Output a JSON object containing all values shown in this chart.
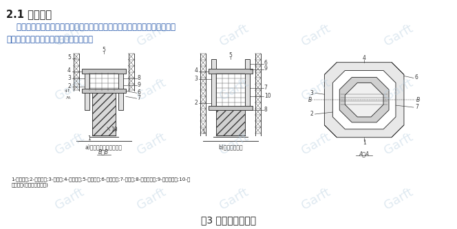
{
  "bg_color": "#ffffff",
  "watermark_color": "#b8cfe0",
  "title_heading": "2.1 翻模工艺",
  "body_text_line1": "    模板制造简单，构件种类少，可根据施工起吊能力、索塔造型进行分块，施",
  "body_text_line2": "工缝易于处理，外观美观，施工速度快。",
  "caption_bottom": "图3 翻模提升示意图",
  "sub_caption_a": "a)浇筑混凝土、安装模板",
  "sub_caption_b": "b)翻板交替提升",
  "section_label_bb": "B－B",
  "section_label_aa": "A－A",
  "legend_text": "1-已浇索塔;2-模板构架;3-外模板;4-上作平台;5-劲性骨架;6-内控平台;7-内模板;8-第三节模板;9-第二节模板;10-第",
  "legend_text2": "一节模板(左侧模板未编号)",
  "text_color": "#1a1a1a",
  "diagram_color": "#3a3a3a",
  "heading_color": "#1a1a1a",
  "body_color": "#2255aa"
}
